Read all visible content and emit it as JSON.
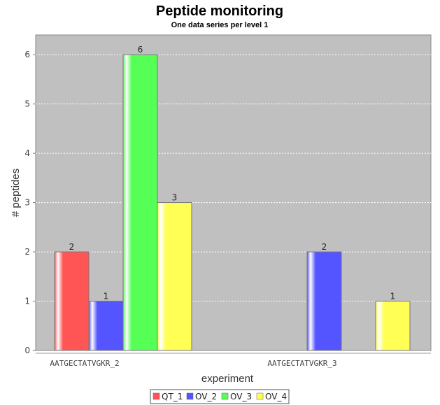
{
  "chart_data": {
    "type": "bar",
    "title": "Peptide monitoring",
    "subtitle": "One data series per level 1",
    "xlabel": "experiment",
    "ylabel": "# peptides",
    "categories": [
      "AATGECTATVGKR_2",
      "AATGECTATVGKR_3"
    ],
    "series": [
      {
        "name": "QT_1",
        "color": "#ff5555",
        "values": [
          2,
          0
        ]
      },
      {
        "name": "OV_2",
        "color": "#5555ff",
        "values": [
          1,
          2
        ]
      },
      {
        "name": "OV_3",
        "color": "#55ff55",
        "values": [
          6,
          0
        ]
      },
      {
        "name": "OV_4",
        "color": "#ffff55",
        "values": [
          3,
          1
        ]
      }
    ],
    "ylim": [
      0,
      6.4
    ],
    "yticks": [
      0,
      1,
      2,
      3,
      4,
      5,
      6
    ],
    "grid": true,
    "legend_position": "bottom",
    "plot_background": "#c0c0c0"
  }
}
